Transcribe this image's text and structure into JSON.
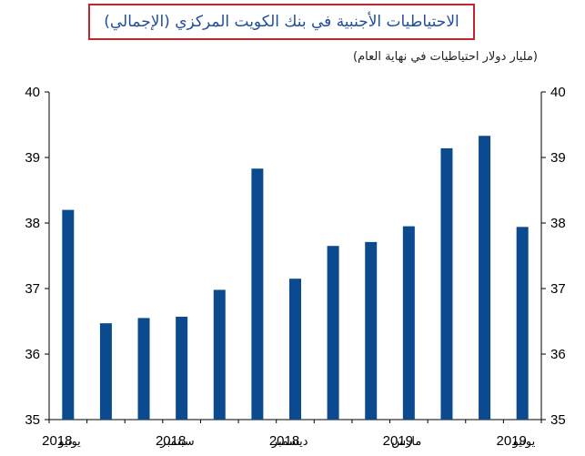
{
  "title": "الاحتياطيات الأجنبية في بنك الكويت المركزي (الإجمالي)",
  "subtitle": "(مليار دولار احتياطيات في نهاية العام)",
  "colors": {
    "bar": "#0b4a8f",
    "title_border": "#c0272d",
    "title_text": "#1f4e9c"
  },
  "chart_data": {
    "type": "bar",
    "categories": [
      "Jun 2018",
      "Jul 2018",
      "Aug 2018",
      "Sep 2018",
      "Oct 2018",
      "Nov 2018",
      "Dec 2018",
      "Jan 2019",
      "Feb 2019",
      "Mar 2019",
      "Apr 2019",
      "May 2019",
      "Jun 2019"
    ],
    "values": [
      38.2,
      36.47,
      36.55,
      36.57,
      36.98,
      38.83,
      37.15,
      37.65,
      37.71,
      37.95,
      39.14,
      39.33,
      37.94
    ],
    "ylim": [
      35,
      40
    ],
    "yticks": [
      "35",
      "36",
      "37",
      "38",
      "39",
      "40"
    ],
    "xtick_labels": [
      {
        "category_index": 0,
        "year": "2018",
        "month": "يونيو"
      },
      {
        "category_index": 3,
        "year": "2018",
        "month": "سبتمبر"
      },
      {
        "category_index": 6,
        "year": "2018",
        "month": "ديسمبر"
      },
      {
        "category_index": 9,
        "year": "2019",
        "month": "مارس"
      },
      {
        "category_index": 12,
        "year": "2019",
        "month": "يونيو"
      }
    ],
    "grid": false
  }
}
